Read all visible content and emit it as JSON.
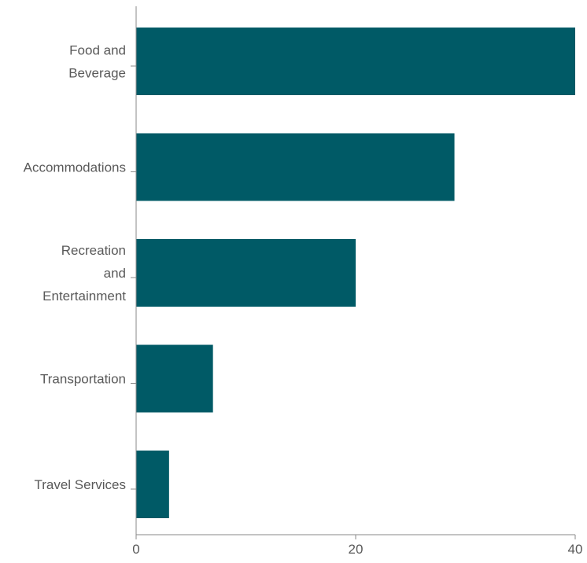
{
  "chart_data": {
    "type": "bar",
    "orientation": "horizontal",
    "categories": [
      [
        "Food and",
        "Beverage"
      ],
      [
        "Accommodations"
      ],
      [
        "Recreation",
        "and",
        "Entertainment"
      ],
      [
        "Transportation"
      ],
      [
        "Travel Services"
      ]
    ],
    "values": [
      40,
      29,
      20,
      7,
      3
    ],
    "xlim": [
      0,
      40
    ],
    "xticks": [
      0,
      20,
      40
    ],
    "xtick_labels": [
      "0",
      "20",
      "40"
    ],
    "title": "",
    "xlabel": "",
    "ylabel": "",
    "grid": false,
    "legend": "none",
    "colors": {
      "bar": "#005a66",
      "axis": "#8a8a8a",
      "text": "#595959"
    }
  }
}
